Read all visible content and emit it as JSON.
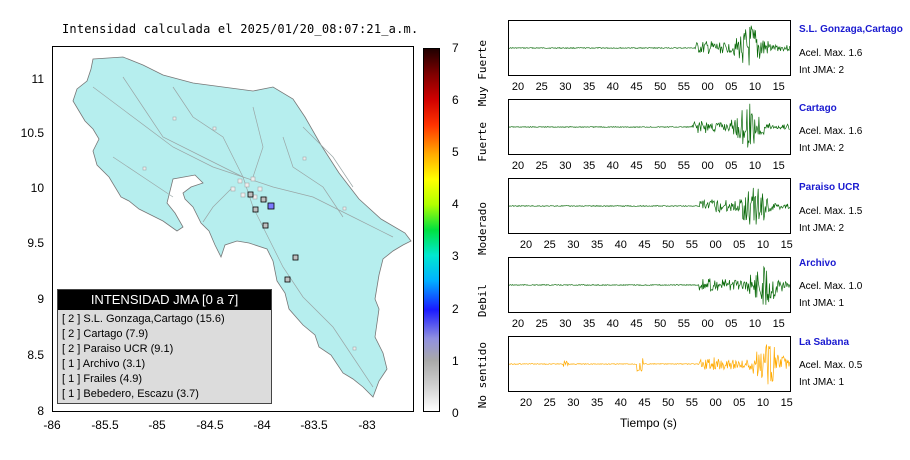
{
  "map": {
    "title": "Intensidad calculada el 2025/01/20_08:07:21_a.m.",
    "y_ticks": [
      "11",
      "10.5",
      "10",
      "9.5",
      "9",
      "8.5",
      "8"
    ],
    "x_ticks": [
      "-86",
      "-85.5",
      "-85",
      "-84.5",
      "-84",
      "-83.5",
      "-83"
    ],
    "land_color": "#b6eeee"
  },
  "legend": {
    "title": "INTENSIDAD JMA [0 a 7]",
    "items": [
      "[ 2 ]  S.L. Gonzaga,Cartago (15.6)",
      "[ 2 ]  Cartago (7.9)",
      "[ 2 ]  Paraiso UCR (9.1)",
      "[ 1 ]  Archivo (3.1)",
      "[ 1 ]  Frailes (4.9)",
      "[ 1 ]  Bebedero, Escazu (3.7)"
    ]
  },
  "colorbar": {
    "ticks": [
      "7",
      "6",
      "5",
      "4",
      "3",
      "2",
      "1",
      "0"
    ],
    "labels": [
      "Muy Fuerte",
      "Fuerte",
      "Moderado",
      "Debil",
      "No sentido"
    ]
  },
  "stations": [
    {
      "name": "S.L. Gonzaga,Cartago",
      "accel": "Acel. Max. 1.6",
      "jma": "Int JMA: 2",
      "color": "#0a6a0a"
    },
    {
      "name": "Cartago",
      "accel": "Acel. Max. 1.6",
      "jma": "Int JMA: 2",
      "color": "#0a6a0a"
    },
    {
      "name": "Paraiso UCR",
      "accel": "Acel. Max. 1.5",
      "jma": "Int JMA: 2",
      "color": "#0a6a0a"
    },
    {
      "name": "Archivo",
      "accel": "Acel. Max. 1.0",
      "jma": "Int JMA: 1",
      "color": "#0a6a0a"
    },
    {
      "name": "La Sabana",
      "accel": "Acel. Max. 0.5",
      "jma": "Int JMA: 1",
      "color": "#ffaa00"
    }
  ],
  "time_axis": {
    "ticks_a": [
      "20",
      "25",
      "30",
      "35",
      "40",
      "45",
      "50",
      "55",
      "00",
      "05",
      "10",
      "15"
    ],
    "ticks_b": [
      "20",
      "25",
      "30",
      "35",
      "40",
      "45",
      "50",
      "55",
      "00",
      "05",
      "10",
      "15"
    ],
    "xlabel": "Tiempo (s)"
  }
}
